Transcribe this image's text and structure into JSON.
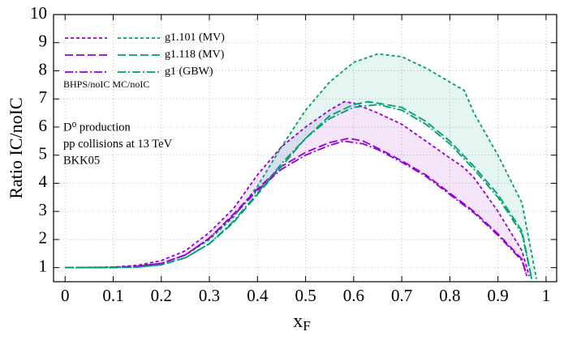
{
  "chart_data": {
    "type": "line",
    "ylabel": "Ratio IC/noIC",
    "xlabel": {
      "text": "x",
      "sub": "F"
    },
    "xlim": [
      -0.024,
      1.022
    ],
    "ylim": [
      0.5,
      10
    ],
    "xticks": [
      0,
      0.1,
      0.2,
      0.3,
      0.4,
      0.5,
      0.6,
      0.7,
      0.8,
      0.9,
      1
    ],
    "yticks": [
      1,
      2,
      3,
      4,
      5,
      6,
      7,
      8,
      9,
      10
    ],
    "grid": true,
    "legend_loc": "upper left",
    "legend_title": "BHPS/noIC MC/noIC",
    "annotations": [
      "D⁰ production",
      "pp collisions at 13 TeV",
      "BKK05"
    ],
    "band_opacity": 0.1,
    "series": [
      {
        "name": "g1.101 (MV)",
        "style": "dotted",
        "curves": [
          {
            "color": "#9400d3",
            "x": [
              0,
              0.1,
              0.15,
              0.2,
              0.25,
              0.3,
              0.35,
              0.4,
              0.45,
              0.5,
              0.55,
              0.58,
              0.6,
              0.65,
              0.7,
              0.75,
              0.8,
              0.83,
              0.85,
              0.9,
              0.95,
              0.965
            ],
            "values": [
              1,
              1.02,
              1.08,
              1.25,
              1.6,
              2.25,
              3.1,
              4.3,
              5.3,
              6.0,
              6.6,
              6.9,
              6.85,
              6.5,
              6.1,
              5.5,
              4.9,
              4.55,
              4.2,
              3.0,
              1.6,
              0.7
            ]
          },
          {
            "color": "#009e73",
            "x": [
              0,
              0.1,
              0.15,
              0.2,
              0.25,
              0.3,
              0.35,
              0.4,
              0.45,
              0.5,
              0.55,
              0.6,
              0.65,
              0.7,
              0.75,
              0.8,
              0.83,
              0.85,
              0.9,
              0.95,
              0.98
            ],
            "values": [
              1,
              1.01,
              1.04,
              1.15,
              1.45,
              2.0,
              2.8,
              3.9,
              5.3,
              6.6,
              7.6,
              8.3,
              8.6,
              8.5,
              8.1,
              7.6,
              7.3,
              6.5,
              5.0,
              3.3,
              0.6
            ]
          }
        ]
      },
      {
        "name": "g1.118 (MV)",
        "style": "dashed",
        "curves": [
          {
            "color": "#9400d3",
            "x": [
              0,
              0.1,
              0.15,
              0.2,
              0.25,
              0.3,
              0.35,
              0.4,
              0.45,
              0.5,
              0.55,
              0.59,
              0.62,
              0.65,
              0.7,
              0.75,
              0.8,
              0.85,
              0.9,
              0.95,
              0.96
            ],
            "values": [
              1,
              1.01,
              1.05,
              1.15,
              1.45,
              2.05,
              2.9,
              3.8,
              4.6,
              5.1,
              5.45,
              5.6,
              5.5,
              5.25,
              4.8,
              4.3,
              3.65,
              3.0,
              2.2,
              1.3,
              0.7
            ]
          },
          {
            "color": "#009e73",
            "x": [
              0,
              0.1,
              0.15,
              0.2,
              0.25,
              0.3,
              0.35,
              0.4,
              0.45,
              0.5,
              0.55,
              0.6,
              0.63,
              0.65,
              0.7,
              0.75,
              0.8,
              0.85,
              0.9,
              0.95,
              0.97
            ],
            "values": [
              1,
              1.0,
              1.02,
              1.1,
              1.35,
              1.85,
              2.6,
              3.6,
              4.6,
              5.6,
              6.4,
              6.8,
              6.9,
              6.85,
              6.7,
              6.2,
              5.5,
              4.6,
              3.6,
              2.3,
              0.6
            ]
          }
        ]
      },
      {
        "name": "g1 (GBW)",
        "style": "dashdot",
        "curves": [
          {
            "color": "#9400d3",
            "x": [
              0,
              0.1,
              0.15,
              0.2,
              0.25,
              0.3,
              0.35,
              0.4,
              0.45,
              0.5,
              0.55,
              0.58,
              0.62,
              0.65,
              0.7,
              0.75,
              0.8,
              0.85,
              0.9,
              0.95,
              0.96
            ],
            "values": [
              1,
              1.01,
              1.05,
              1.15,
              1.45,
              2.05,
              2.85,
              3.75,
              4.5,
              5.0,
              5.35,
              5.5,
              5.4,
              5.2,
              4.75,
              4.25,
              3.6,
              2.95,
              2.15,
              1.25,
              0.7
            ]
          },
          {
            "color": "#009e73",
            "x": [
              0,
              0.1,
              0.15,
              0.2,
              0.25,
              0.3,
              0.35,
              0.4,
              0.45,
              0.5,
              0.55,
              0.6,
              0.65,
              0.7,
              0.75,
              0.8,
              0.85,
              0.9,
              0.95,
              0.97
            ],
            "values": [
              1,
              1.0,
              1.02,
              1.1,
              1.35,
              1.85,
              2.65,
              3.65,
              4.7,
              5.6,
              6.3,
              6.7,
              6.8,
              6.6,
              6.1,
              5.4,
              4.5,
              3.5,
              2.2,
              0.6
            ]
          }
        ]
      }
    ]
  }
}
